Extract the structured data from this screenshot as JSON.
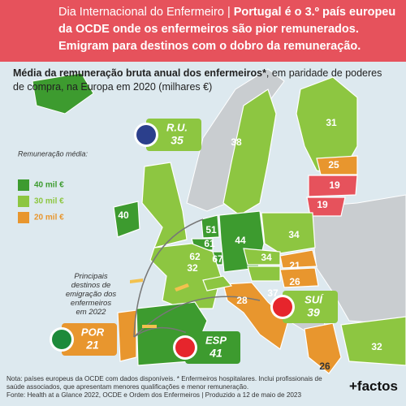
{
  "header": {
    "lead": "Dia Internacional do Enfermeiro | ",
    "headline": "Portugal é o 3.º país europeu da OCDE onde os enfermeiros são pior remunerados. Emigram para destinos com o dobro da remuneração."
  },
  "subtitle": {
    "bold": "Média da remuneração bruta anual dos enfermeiros*",
    "rest": ", em paridade de poderes de compra, na Europa em 2020 (milhares €)"
  },
  "legend": {
    "title": "Remuneração média:",
    "items": [
      {
        "label": "40 mil €",
        "color": "#3d9b2f"
      },
      {
        "label": "30 mil €",
        "color": "#8dc641"
      },
      {
        "label": "20 mil €",
        "color": "#e8962e"
      }
    ]
  },
  "map_labels": [
    {
      "value": 31,
      "color": "#8dc641"
    },
    {
      "value": 38,
      "color": "#8dc641"
    },
    {
      "value": 25,
      "color": "#e8962e"
    },
    {
      "value": 19,
      "color": "#e6525c"
    },
    {
      "value": 19,
      "color": "#e6525c"
    },
    {
      "value": 40,
      "color": "#3d9b2f"
    },
    {
      "value": 51,
      "color": "#3d9b2f"
    },
    {
      "value": 61,
      "color": "#3d9b2f"
    },
    {
      "value": 62,
      "color": "#3d9b2f"
    },
    {
      "value": 67,
      "color": "#3d9b2f"
    },
    {
      "value": 44,
      "color": "#3d9b2f"
    },
    {
      "value": 34,
      "color": "#8dc641"
    },
    {
      "value": 34,
      "color": "#8dc641"
    },
    {
      "value": 32,
      "color": "#8dc641"
    },
    {
      "value": 21,
      "color": "#e8962e"
    },
    {
      "value": 26,
      "color": "#e8962e"
    },
    {
      "value": 37,
      "color": "#8dc641"
    },
    {
      "value": 28,
      "color": "#e8962e"
    },
    {
      "value": 32,
      "color": "#8dc641"
    },
    {
      "value": 26,
      "color": "#e8962e"
    }
  ],
  "callouts": [
    {
      "label": "R.U.",
      "value": 35,
      "color": "#8dc641"
    },
    {
      "label": "SUÍ",
      "value": 39,
      "color": "#8dc641"
    },
    {
      "label": "POR",
      "value": 21,
      "color": "#e8962e"
    },
    {
      "label": "ESP",
      "value": 41,
      "color": "#3d9b2f"
    }
  ],
  "annotation": "Principais destinos de emigração dos enfermeiros em 2022",
  "footer": {
    "note": "Nota: países europeus da OCDE com dados disponíveis. * Enfermeiros hospitalares. Inclui profissionais de saúde associados, que apresentam menores qualificações e menor remuneração.",
    "source": "Fonte: Health at a Glance 2022, OCDE e Ordem dos Enfermeiros | Produzido a 12 de maio de 2023",
    "logo": "+factos"
  }
}
